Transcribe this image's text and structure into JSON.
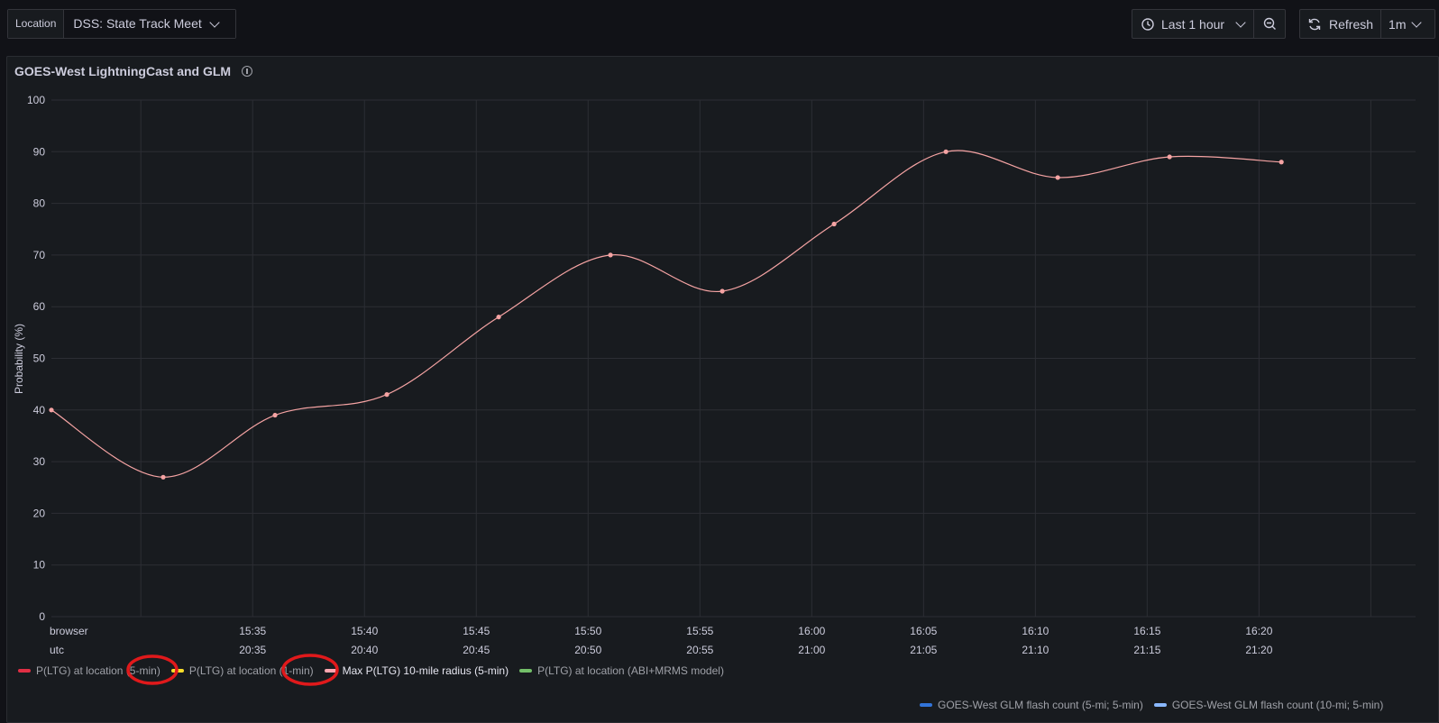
{
  "toolbar": {
    "location_label": "Location",
    "location_value": "DSS: State Track Meet",
    "time_range": "Last 1 hour",
    "refresh_label": "Refresh",
    "refresh_interval": "1m"
  },
  "panel": {
    "title": "GOES-West LightningCast and GLM"
  },
  "colors": {
    "background": "#111217",
    "panel": "#181b1f",
    "grid": "#2c2e34",
    "series_line": "#f5a3a3",
    "annotation": "#e0191b"
  },
  "legend": {
    "row1": [
      {
        "label": "P(LTG) at location (5-min)",
        "color": "#e02f44",
        "active": false
      },
      {
        "label": "P(LTG) at location (1-min)",
        "color": "#fade2a",
        "active": false
      },
      {
        "label": "Max P(LTG) 10-mile radius (5-min)",
        "color": "#ffa6b0",
        "active": true
      },
      {
        "label": "P(LTG) at location (ABI+MRMS model)",
        "color": "#73bf69",
        "active": false
      }
    ],
    "row2": [
      {
        "label": "GOES-West GLM flash count (5-mi; 5-min)",
        "color": "#3274d9",
        "active": false
      },
      {
        "label": "GOES-West GLM flash count (10-mi; 5-min)",
        "color": "#8ab8ff",
        "active": false
      }
    ]
  },
  "chart_data": {
    "type": "line",
    "ylabel": "Probability (%)",
    "ylim": [
      0,
      100
    ],
    "yticks": [
      0,
      10,
      20,
      30,
      40,
      50,
      60,
      70,
      80,
      90,
      100
    ],
    "x_row_labels": [
      "browser",
      "utc"
    ],
    "xticks_browser": [
      "15:35",
      "15:40",
      "15:45",
      "15:50",
      "15:55",
      "16:00",
      "16:05",
      "16:10",
      "16:15",
      "16:20"
    ],
    "xticks_utc": [
      "20:35",
      "20:40",
      "20:45",
      "20:50",
      "20:55",
      "21:00",
      "21:05",
      "21:10",
      "21:15",
      "21:20"
    ],
    "series": [
      {
        "name": "Max P(LTG) 10-mile radius (5-min)",
        "x": [
          "15:26",
          "15:31",
          "15:36",
          "15:41",
          "15:46",
          "15:51",
          "15:56",
          "16:01",
          "16:06",
          "16:11",
          "16:16",
          "16:21"
        ],
        "values": [
          40,
          27,
          39,
          43,
          58,
          70,
          63,
          76,
          90,
          85,
          89,
          88
        ]
      }
    ],
    "grid": true
  }
}
